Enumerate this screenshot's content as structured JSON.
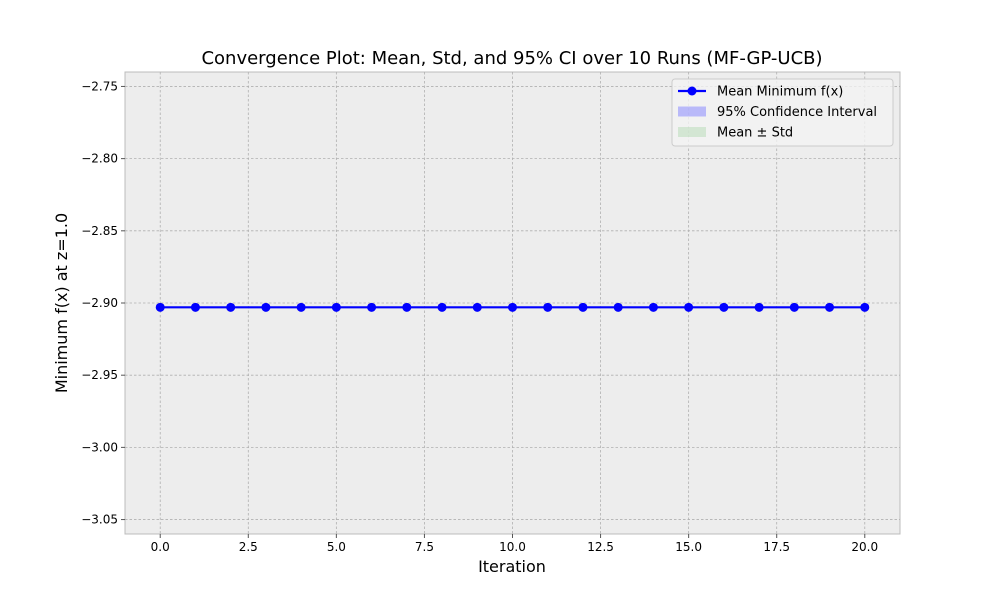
{
  "chart_data": {
    "type": "line",
    "title": "Convergence Plot: Mean, Std, and 95% CI over 10 Runs (MF-GP-UCB)",
    "xlabel": "Iteration",
    "ylabel": "Minimum f(x) at z=1.0",
    "xlim": [
      -1.0,
      21.0
    ],
    "ylim": [
      -3.06,
      -2.74
    ],
    "x_ticks": [
      0.0,
      2.5,
      5.0,
      7.5,
      10.0,
      12.5,
      15.0,
      17.5,
      20.0
    ],
    "x_tick_labels": [
      "0.0",
      "2.5",
      "5.0",
      "7.5",
      "10.0",
      "12.5",
      "15.0",
      "17.5",
      "20.0"
    ],
    "y_ticks": [
      -2.75,
      -2.8,
      -2.85,
      -2.9,
      -2.95,
      -3.0,
      -3.05
    ],
    "y_tick_labels": [
      "−2.75",
      "−2.80",
      "−2.85",
      "−2.90",
      "−2.95",
      "−3.00",
      "−3.05"
    ],
    "grid": true,
    "legend_position": "top-right",
    "x": [
      0,
      1,
      2,
      3,
      4,
      5,
      6,
      7,
      8,
      9,
      10,
      11,
      12,
      13,
      14,
      15,
      16,
      17,
      18,
      19,
      20
    ],
    "series": [
      {
        "name": "Mean Minimum f(x)",
        "kind": "line-marker",
        "color": "#0000ff",
        "values": [
          -2.903,
          -2.903,
          -2.903,
          -2.903,
          -2.903,
          -2.903,
          -2.903,
          -2.903,
          -2.903,
          -2.903,
          -2.903,
          -2.903,
          -2.903,
          -2.903,
          -2.903,
          -2.903,
          -2.903,
          -2.903,
          -2.903,
          -2.903,
          -2.903
        ]
      },
      {
        "name": "95% Confidence Interval",
        "kind": "band",
        "color": "#8080ff",
        "lower": [
          -2.903,
          -2.903,
          -2.903,
          -2.903,
          -2.903,
          -2.903,
          -2.903,
          -2.903,
          -2.903,
          -2.903,
          -2.903,
          -2.903,
          -2.903,
          -2.903,
          -2.903,
          -2.903,
          -2.903,
          -2.903,
          -2.903,
          -2.903,
          -2.903
        ],
        "upper": [
          -2.903,
          -2.903,
          -2.903,
          -2.903,
          -2.903,
          -2.903,
          -2.903,
          -2.903,
          -2.903,
          -2.903,
          -2.903,
          -2.903,
          -2.903,
          -2.903,
          -2.903,
          -2.903,
          -2.903,
          -2.903,
          -2.903,
          -2.903,
          -2.903
        ]
      },
      {
        "name": "Mean ± Std",
        "kind": "band",
        "color": "#b3d9b3",
        "lower": [
          -2.903,
          -2.903,
          -2.903,
          -2.903,
          -2.903,
          -2.903,
          -2.903,
          -2.903,
          -2.903,
          -2.903,
          -2.903,
          -2.903,
          -2.903,
          -2.903,
          -2.903,
          -2.903,
          -2.903,
          -2.903,
          -2.903,
          -2.903,
          -2.903
        ],
        "upper": [
          -2.903,
          -2.903,
          -2.903,
          -2.903,
          -2.903,
          -2.903,
          -2.903,
          -2.903,
          -2.903,
          -2.903,
          -2.903,
          -2.903,
          -2.903,
          -2.903,
          -2.903,
          -2.903,
          -2.903,
          -2.903,
          -2.903,
          -2.903,
          -2.903
        ]
      }
    ]
  }
}
